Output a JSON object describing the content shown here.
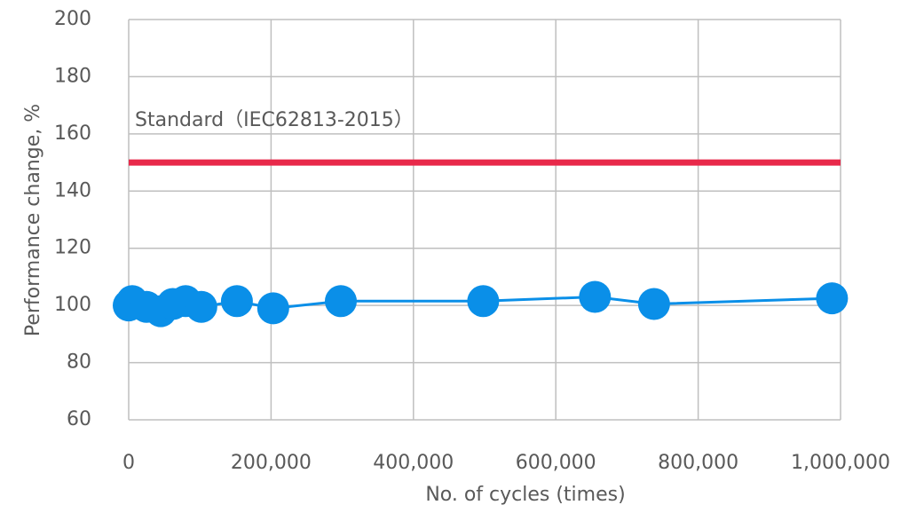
{
  "chart_data": {
    "type": "line",
    "x_label": "No. of cycles (times)",
    "y_label": "Performance change, %",
    "xlim": [
      0,
      1000000
    ],
    "xticks": [
      0,
      {
        "value": 200000,
        "label": "200,000"
      },
      {
        "value": 400000,
        "label": "400,000"
      },
      {
        "value": 600000,
        "label": "600,000"
      },
      {
        "value": 800000,
        "label": "800,000"
      },
      {
        "value": 1000000,
        "label": "1,000,000"
      }
    ],
    "ylim": [
      60,
      200
    ],
    "yticks": [
      60,
      80,
      100,
      120,
      140,
      160,
      180,
      200
    ],
    "grid": true,
    "reference_line": {
      "label": "Standard（IEC62813-2015）",
      "value": 150,
      "color": "#e8294a"
    },
    "series": [
      {
        "color": "#0a8fe8",
        "x": [
          0,
          5000,
          25000,
          45000,
          62000,
          80000,
          102000,
          152000,
          203000,
          298000,
          498000,
          655000,
          738000,
          988000
        ],
        "values": [
          100,
          101.5,
          99.5,
          98,
          100.5,
          101.5,
          99.5,
          101.5,
          99,
          101.5,
          101.5,
          103,
          100.5,
          102.5
        ]
      }
    ]
  }
}
